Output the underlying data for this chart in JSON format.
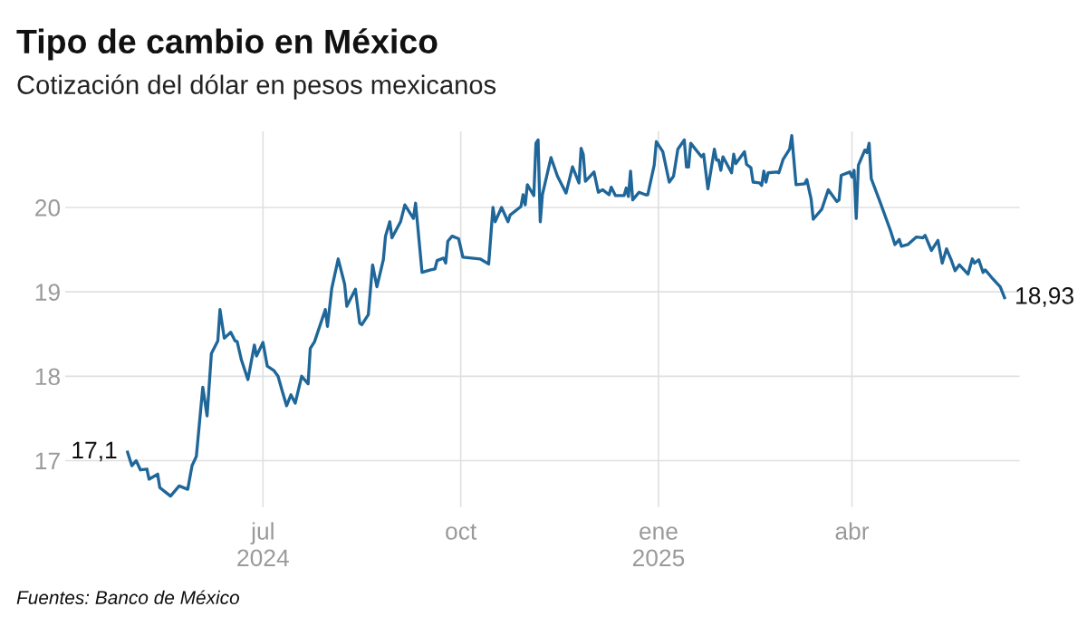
{
  "chart_data": {
    "type": "line",
    "title": "Tipo de cambio en México",
    "subtitle": "Cotización del dólar en pesos mexicanos",
    "annotations": [
      {
        "text": "17,1",
        "x": "2024-04-29",
        "y": 17.1
      },
      {
        "text": "18,93",
        "x": "2025-06-11",
        "y": 18.93
      },
      "Fuentes: Banco de México"
    ],
    "xlim": [
      "2024-03-31",
      "2025-06-18"
    ],
    "ylim": [
      16.45,
      20.9
    ],
    "xticks": [
      {
        "value": "2024-07-01",
        "label": "jul\n2024"
      },
      {
        "value": "2024-10-01",
        "label": "oct"
      },
      {
        "value": "2025-01-01",
        "label": "ene\n2025"
      },
      {
        "value": "2025-04-01",
        "label": "abr"
      }
    ],
    "yticks": [
      17,
      18,
      19,
      20
    ],
    "grid": true,
    "legend": false,
    "line_style": "solid",
    "marker": "none",
    "series": [
      {
        "color": "#1f6699",
        "x": [
          "2024-04-29",
          "2024-05-01",
          "2024-05-03",
          "2024-05-05",
          "2024-05-08",
          "2024-05-09",
          "2024-05-13",
          "2024-05-14",
          "2024-05-17",
          "2024-05-19",
          "2024-05-23",
          "2024-05-27",
          "2024-05-29",
          "2024-05-31",
          "2024-06-03",
          "2024-06-05",
          "2024-06-07",
          "2024-06-10",
          "2024-06-11",
          "2024-06-13",
          "2024-06-16",
          "2024-06-18",
          "2024-06-19",
          "2024-06-21",
          "2024-06-24",
          "2024-06-27",
          "2024-06-28",
          "2024-07-01",
          "2024-07-03",
          "2024-07-06",
          "2024-07-08",
          "2024-07-10",
          "2024-07-12",
          "2024-07-14",
          "2024-07-16",
          "2024-07-19",
          "2024-07-22",
          "2024-07-23",
          "2024-07-25",
          "2024-07-30",
          "2024-07-31",
          "2024-08-02",
          "2024-08-05",
          "2024-08-08",
          "2024-08-09",
          "2024-08-13",
          "2024-08-15",
          "2024-08-16",
          "2024-08-19",
          "2024-08-21",
          "2024-08-23",
          "2024-08-26",
          "2024-08-27",
          "2024-08-29",
          "2024-08-30",
          "2024-09-03",
          "2024-09-05",
          "2024-09-09",
          "2024-09-10",
          "2024-09-13",
          "2024-09-17",
          "2024-09-19",
          "2024-09-20",
          "2024-09-23",
          "2024-09-24",
          "2024-09-25",
          "2024-09-27",
          "2024-09-30",
          "2024-10-02",
          "2024-10-10",
          "2024-10-14",
          "2024-10-16",
          "2024-10-17",
          "2024-10-20",
          "2024-10-23",
          "2024-10-24",
          "2024-10-29",
          "2024-10-30",
          "2024-10-31",
          "2024-11-01",
          "2024-11-04",
          "2024-11-05",
          "2024-11-06",
          "2024-11-07",
          "2024-11-08",
          "2024-11-12",
          "2024-11-15",
          "2024-11-19",
          "2024-11-22",
          "2024-11-25",
          "2024-11-26",
          "2024-11-27",
          "2024-11-28",
          "2024-12-02",
          "2024-12-04",
          "2024-12-06",
          "2024-12-09",
          "2024-12-10",
          "2024-12-12",
          "2024-12-16",
          "2024-12-17",
          "2024-12-18",
          "2024-12-19",
          "2024-12-20",
          "2024-12-23",
          "2024-12-26",
          "2024-12-27",
          "2024-12-30",
          "2024-12-31",
          "2025-01-03",
          "2025-01-06",
          "2025-01-08",
          "2025-01-10",
          "2025-01-13",
          "2025-01-14",
          "2025-01-15",
          "2025-01-16",
          "2025-01-21",
          "2025-01-22",
          "2025-01-24",
          "2025-01-27",
          "2025-01-28",
          "2025-01-29",
          "2025-01-30",
          "2025-01-31",
          "2025-02-04",
          "2025-02-05",
          "2025-02-06",
          "2025-02-10",
          "2025-02-11",
          "2025-02-13",
          "2025-02-14",
          "2025-02-17",
          "2025-02-18",
          "2025-02-19",
          "2025-02-20",
          "2025-02-21",
          "2025-02-25",
          "2025-02-26",
          "2025-02-28",
          "2025-03-03",
          "2025-03-04",
          "2025-03-06",
          "2025-03-10",
          "2025-03-11",
          "2025-03-13",
          "2025-03-14",
          "2025-03-18",
          "2025-03-21",
          "2025-03-25",
          "2025-03-26",
          "2025-03-27",
          "2025-03-31",
          "2025-04-01",
          "2025-04-02",
          "2025-04-03",
          "2025-04-04",
          "2025-04-07",
          "2025-04-08",
          "2025-04-09",
          "2025-04-10",
          "2025-04-14",
          "2025-04-19",
          "2025-04-21",
          "2025-04-23",
          "2025-04-24",
          "2025-04-27",
          "2025-05-01",
          "2025-05-04",
          "2025-05-05",
          "2025-05-08",
          "2025-05-11",
          "2025-05-13",
          "2025-05-15",
          "2025-05-17",
          "2025-05-19",
          "2025-05-21",
          "2025-05-25",
          "2025-05-27",
          "2025-05-28",
          "2025-05-30",
          "2025-06-01",
          "2025-06-02",
          "2025-06-05",
          "2025-06-09",
          "2025-06-11"
        ],
        "values": [
          17.1,
          16.94,
          17.0,
          16.89,
          16.9,
          16.78,
          16.84,
          16.68,
          16.62,
          16.58,
          16.7,
          16.66,
          16.94,
          17.05,
          17.87,
          17.53,
          18.27,
          18.42,
          18.79,
          18.45,
          18.52,
          18.42,
          18.41,
          18.19,
          17.96,
          18.37,
          18.24,
          18.4,
          18.12,
          18.07,
          18.0,
          17.82,
          17.65,
          17.78,
          17.68,
          18.0,
          17.91,
          18.33,
          18.41,
          18.79,
          18.59,
          19.04,
          19.39,
          19.09,
          18.83,
          19.03,
          18.63,
          18.61,
          18.73,
          19.32,
          19.06,
          19.38,
          19.66,
          19.83,
          19.64,
          19.83,
          20.03,
          19.87,
          20.05,
          19.23,
          19.26,
          19.27,
          19.37,
          19.4,
          19.34,
          19.6,
          19.66,
          19.63,
          19.41,
          19.39,
          19.33,
          20.0,
          19.83,
          20.0,
          19.83,
          19.91,
          20.01,
          20.15,
          20.03,
          20.27,
          20.14,
          20.76,
          20.8,
          19.83,
          20.15,
          20.59,
          20.37,
          20.17,
          20.48,
          20.29,
          20.7,
          20.63,
          20.31,
          20.42,
          20.18,
          20.21,
          20.15,
          20.24,
          20.14,
          20.14,
          20.23,
          20.13,
          20.43,
          20.09,
          20.18,
          20.15,
          20.15,
          20.5,
          20.78,
          20.66,
          20.3,
          20.37,
          20.69,
          20.8,
          20.48,
          20.48,
          20.76,
          20.6,
          20.63,
          20.22,
          20.69,
          20.56,
          20.56,
          20.44,
          20.6,
          20.41,
          20.63,
          20.52,
          20.66,
          20.51,
          20.47,
          20.3,
          20.29,
          20.26,
          20.43,
          20.3,
          20.41,
          20.42,
          20.41,
          20.57,
          20.69,
          20.85,
          20.27,
          20.28,
          20.33,
          20.1,
          19.86,
          19.98,
          20.21,
          20.07,
          20.09,
          20.38,
          20.42,
          20.36,
          20.44,
          19.87,
          20.5,
          20.68,
          20.65,
          20.76,
          20.34,
          20.07,
          19.72,
          19.56,
          19.62,
          19.54,
          19.56,
          19.65,
          19.64,
          19.67,
          19.49,
          19.61,
          19.34,
          19.51,
          19.39,
          19.25,
          19.32,
          19.21,
          19.39,
          19.34,
          19.38,
          19.23,
          19.26,
          19.17,
          19.06,
          18.93
        ]
      }
    ]
  }
}
